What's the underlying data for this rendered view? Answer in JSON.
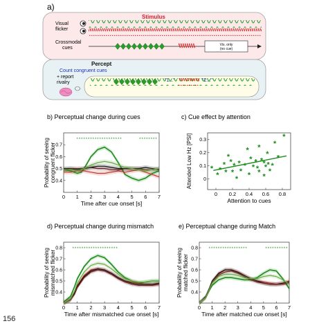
{
  "page_number": "156",
  "panel_a": {
    "letter": "a)",
    "stimulus_title": "Stimulus",
    "visual_flicker_label": [
      "Visual",
      "flicker"
    ],
    "crossmodal_label": [
      "Crossmodal",
      "cues"
    ],
    "vis_only_label": [
      "Vis. only",
      "(no cue)"
    ],
    "percept_title": "Percept",
    "count_label": "Count congruent cues",
    "report_label": [
      "+ report",
      "rivalry"
    ],
    "bubble_1": "\"1...\"",
    "bubble_2": "\"2...\""
  },
  "chart_data": [
    {
      "panel": "b)",
      "title": "Perceptual change during cues",
      "type": "line",
      "xlabel": "Time after cue onset [s]",
      "ylabel": [
        "Probability of seeing",
        "congruent flicker"
      ],
      "xlim": [
        0,
        7
      ],
      "ylim": [
        0.3,
        0.8
      ],
      "xticks": [
        0,
        1,
        2,
        3,
        4,
        5,
        6,
        7
      ],
      "yticks": [
        0.4,
        0.5,
        0.6,
        0.7
      ],
      "sig_bars": [
        [
          1.0,
          4.2
        ],
        [
          5.6,
          6.8
        ]
      ],
      "series": [
        {
          "color": "#1a8c1a",
          "x": [
            0,
            0.5,
            1,
            1.3,
            1.6,
            2,
            2.5,
            3,
            3.5,
            4,
            4.5,
            5,
            5.5,
            6,
            6.5,
            7
          ],
          "y": [
            0.49,
            0.48,
            0.46,
            0.47,
            0.52,
            0.6,
            0.66,
            0.68,
            0.64,
            0.55,
            0.45,
            0.42,
            0.4,
            0.42,
            0.46,
            0.48
          ]
        },
        {
          "color": "#c0392b",
          "x": [
            0,
            0.5,
            1,
            1.5,
            2,
            2.5,
            3,
            3.5,
            4,
            4.5,
            5,
            5.5,
            6,
            6.5,
            7
          ],
          "y": [
            0.47,
            0.47,
            0.48,
            0.48,
            0.47,
            0.46,
            0.46,
            0.47,
            0.48,
            0.47,
            0.48,
            0.49,
            0.47,
            0.45,
            0.43
          ]
        },
        {
          "color": "#6b1f1f",
          "x": [
            0,
            0.5,
            1,
            1.5,
            2,
            2.5,
            3,
            3.5,
            4,
            4.5,
            5,
            5.5,
            6,
            6.5,
            7
          ],
          "y": [
            0.49,
            0.5,
            0.5,
            0.5,
            0.51,
            0.5,
            0.5,
            0.49,
            0.49,
            0.5,
            0.5,
            0.5,
            0.49,
            0.49,
            0.5
          ]
        },
        {
          "color": "#111111",
          "x": [
            0,
            0.5,
            1,
            1.5,
            2,
            2.5,
            3,
            3.5,
            4,
            4.5,
            5,
            5.5,
            6,
            6.5,
            7
          ],
          "y": [
            0.5,
            0.5,
            0.49,
            0.5,
            0.51,
            0.52,
            0.52,
            0.51,
            0.5,
            0.5,
            0.5,
            0.5,
            0.51,
            0.5,
            0.49
          ]
        },
        {
          "color": "#6aaa44",
          "x": [
            0,
            0.5,
            1,
            1.5,
            2,
            2.5,
            3,
            3.5,
            4,
            4.5,
            5,
            5.5,
            6,
            6.5,
            7
          ],
          "y": [
            0.49,
            0.49,
            0.48,
            0.5,
            0.53,
            0.55,
            0.56,
            0.55,
            0.53,
            0.51,
            0.5,
            0.49,
            0.48,
            0.49,
            0.5
          ]
        }
      ]
    },
    {
      "panel": "c)",
      "title": "Cue effect by attention",
      "type": "scatter",
      "xlabel": "Attention to cues",
      "ylabel": [
        "Attended Low Hz [PSI]"
      ],
      "xlim": [
        -0.1,
        0.9
      ],
      "ylim": [
        -0.08,
        0.35
      ],
      "xticks": [
        0,
        0.2,
        0.4,
        0.6,
        0.8
      ],
      "yticks": [
        0,
        0.1,
        0.2,
        0.3
      ],
      "points": [
        [
          0.82,
          0.32
        ],
        [
          0.71,
          0.27
        ],
        [
          0.52,
          0.24
        ],
        [
          0.38,
          0.22
        ],
        [
          0.62,
          0.19
        ],
        [
          0.75,
          0.16
        ],
        [
          0.15,
          0.17
        ],
        [
          0.18,
          0.13
        ],
        [
          0.42,
          0.15
        ],
        [
          0.48,
          0.13
        ],
        [
          0.55,
          0.14
        ],
        [
          0.58,
          0.12
        ],
        [
          0.63,
          0.11
        ],
        [
          0.28,
          0.12
        ],
        [
          0.1,
          0.11
        ],
        [
          0.22,
          0.1
        ],
        [
          0.35,
          0.1
        ],
        [
          0.45,
          0.09
        ],
        [
          0.5,
          0.08
        ],
        [
          0.6,
          0.09
        ],
        [
          0.68,
          0.1
        ],
        [
          0.05,
          0.07
        ],
        [
          0.12,
          0.05
        ],
        [
          0.3,
          0.06
        ],
        [
          0.4,
          0.03
        ],
        [
          0.52,
          0.05
        ],
        [
          0.58,
          0.02
        ],
        [
          0.25,
          0.0
        ],
        [
          0.02,
          0.03
        ],
        [
          -0.05,
          0.08
        ],
        [
          0.2,
          0.05
        ],
        [
          0.65,
          0.06
        ]
      ],
      "fit": [
        [
          -0.03,
          0.065
        ],
        [
          0.85,
          0.175
        ]
      ]
    },
    {
      "panel": "d)",
      "title": "Perceptual change during mismatch",
      "type": "line",
      "xlabel": "Time after mismatched cue onset [s]",
      "ylabel": [
        "Probability of seeing",
        "mismatched flicker"
      ],
      "xlim": [
        0,
        7
      ],
      "ylim": [
        0.3,
        0.85
      ],
      "xticks": [
        0,
        1,
        2,
        3,
        4,
        5,
        6,
        7
      ],
      "yticks": [
        0.4,
        0.5,
        0.6,
        0.7,
        0.8
      ],
      "sig_bars": [
        [
          0.7,
          3.9
        ]
      ],
      "series": [
        {
          "color": "#1a8c1a",
          "x": [
            0,
            0.5,
            0.8,
            1,
            1.5,
            2,
            2.5,
            3,
            3.5,
            4,
            4.5,
            5,
            5.5,
            6,
            6.5,
            7
          ],
          "y": [
            0.31,
            0.36,
            0.45,
            0.52,
            0.63,
            0.7,
            0.73,
            0.71,
            0.65,
            0.58,
            0.53,
            0.5,
            0.48,
            0.49,
            0.5,
            0.5
          ]
        },
        {
          "color": "#c0392b",
          "x": [
            0,
            0.5,
            0.8,
            1,
            1.5,
            2,
            2.5,
            3,
            3.5,
            4,
            4.5,
            5,
            5.5,
            6,
            6.5,
            7
          ],
          "y": [
            0.3,
            0.33,
            0.4,
            0.46,
            0.55,
            0.6,
            0.61,
            0.6,
            0.57,
            0.53,
            0.5,
            0.49,
            0.48,
            0.47,
            0.47,
            0.47
          ]
        },
        {
          "color": "#111111",
          "x": [
            0,
            0.5,
            0.8,
            1,
            1.5,
            2,
            2.5,
            3,
            3.5,
            4,
            4.5,
            5,
            5.5,
            6,
            6.5,
            7
          ],
          "y": [
            0.3,
            0.33,
            0.39,
            0.45,
            0.54,
            0.59,
            0.61,
            0.6,
            0.57,
            0.53,
            0.5,
            0.48,
            0.47,
            0.47,
            0.47,
            0.48
          ]
        },
        {
          "color": "#6b1f1f",
          "x": [
            0,
            0.5,
            0.8,
            1,
            1.5,
            2,
            2.5,
            3,
            3.5,
            4,
            4.5,
            5,
            5.5,
            6,
            6.5,
            7
          ],
          "y": [
            0.3,
            0.33,
            0.38,
            0.44,
            0.53,
            0.58,
            0.6,
            0.59,
            0.56,
            0.52,
            0.49,
            0.47,
            0.46,
            0.46,
            0.46,
            0.47
          ]
        },
        {
          "color": "#6aaa44",
          "x": [
            0,
            0.5,
            0.8,
            1,
            1.5,
            2,
            2.5,
            3,
            3.5,
            4,
            4.5,
            5,
            5.5,
            6,
            6.5,
            7
          ],
          "y": [
            0.3,
            0.34,
            0.41,
            0.48,
            0.58,
            0.64,
            0.66,
            0.65,
            0.61,
            0.56,
            0.52,
            0.5,
            0.49,
            0.49,
            0.5,
            0.5
          ]
        }
      ]
    },
    {
      "panel": "e)",
      "title": "Perceptual change during Match",
      "type": "line",
      "xlabel": "Time after matched cue onset [s]",
      "ylabel": [
        "Probability of seeing",
        "matched flicker"
      ],
      "xlim": [
        0,
        7
      ],
      "ylim": [
        0.3,
        0.85
      ],
      "xticks": [
        0,
        1,
        2,
        3,
        4,
        5,
        6,
        7
      ],
      "yticks": [
        0.4,
        0.5,
        0.6,
        0.7,
        0.8
      ],
      "sig_bars": [
        [
          0.8,
          3.8
        ],
        [
          5.2,
          6.9
        ]
      ],
      "series": [
        {
          "color": "#1a8c1a",
          "x": [
            0,
            0.5,
            0.8,
            1,
            1.5,
            2,
            2.5,
            3,
            3.5,
            4,
            4.5,
            5,
            5.5,
            6,
            6.5,
            7
          ],
          "y": [
            0.3,
            0.35,
            0.42,
            0.46,
            0.51,
            0.53,
            0.53,
            0.52,
            0.51,
            0.51,
            0.53,
            0.57,
            0.6,
            0.59,
            0.52,
            0.43
          ]
        },
        {
          "color": "#c0392b",
          "x": [
            0,
            0.5,
            0.8,
            1,
            1.5,
            2,
            2.5,
            3,
            3.5,
            4,
            4.5,
            5,
            5.5,
            6,
            6.5,
            7
          ],
          "y": [
            0.3,
            0.35,
            0.43,
            0.49,
            0.56,
            0.6,
            0.6,
            0.58,
            0.55,
            0.52,
            0.5,
            0.49,
            0.48,
            0.47,
            0.48,
            0.5
          ]
        },
        {
          "color": "#111111",
          "x": [
            0,
            0.5,
            0.8,
            1,
            1.5,
            2,
            2.5,
            3,
            3.5,
            4,
            4.5,
            5,
            5.5,
            6,
            6.5,
            7
          ],
          "y": [
            0.3,
            0.36,
            0.44,
            0.5,
            0.57,
            0.6,
            0.6,
            0.58,
            0.55,
            0.52,
            0.5,
            0.48,
            0.47,
            0.47,
            0.48,
            0.49
          ]
        },
        {
          "color": "#6b1f1f",
          "x": [
            0,
            0.5,
            0.8,
            1,
            1.5,
            2,
            2.5,
            3,
            3.5,
            4,
            4.5,
            5,
            5.5,
            6,
            6.5,
            7
          ],
          "y": [
            0.3,
            0.35,
            0.43,
            0.48,
            0.55,
            0.58,
            0.59,
            0.57,
            0.54,
            0.51,
            0.49,
            0.48,
            0.47,
            0.47,
            0.47,
            0.48
          ]
        },
        {
          "color": "#6aaa44",
          "x": [
            0,
            0.5,
            0.8,
            1,
            1.5,
            2,
            2.5,
            3,
            3.5,
            4,
            4.5,
            5,
            5.5,
            6,
            6.5,
            7
          ],
          "y": [
            0.3,
            0.35,
            0.43,
            0.48,
            0.54,
            0.56,
            0.56,
            0.55,
            0.53,
            0.52,
            0.52,
            0.54,
            0.55,
            0.54,
            0.51,
            0.47
          ]
        }
      ]
    }
  ]
}
